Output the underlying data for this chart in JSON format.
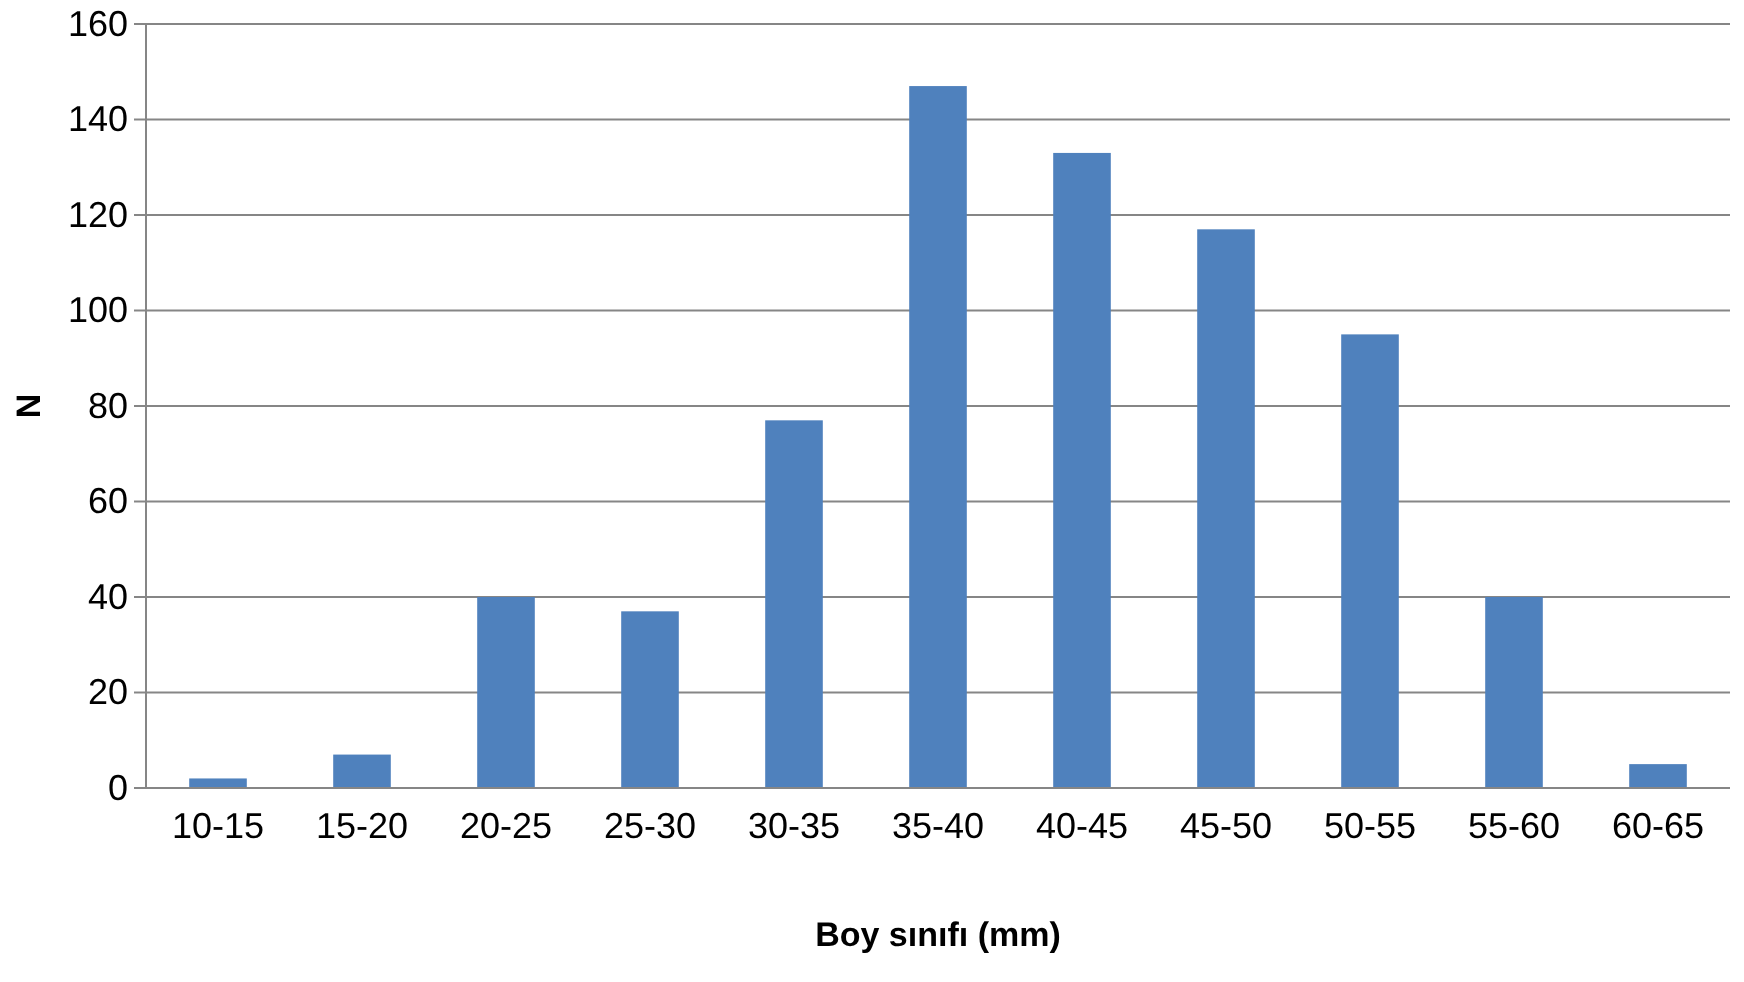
{
  "chart_data": {
    "type": "bar",
    "xlabel": "Boy sınıfı (mm)",
    "ylabel": "N",
    "categories": [
      "10-15",
      "15-20",
      "20-25",
      "25-30",
      "30-35",
      "35-40",
      "40-45",
      "45-50",
      "50-55",
      "55-60",
      "60-65"
    ],
    "values": [
      2,
      7,
      40,
      37,
      77,
      147,
      133,
      117,
      95,
      40,
      5
    ],
    "color": "#4f81bd",
    "ylim": [
      0,
      160
    ],
    "yticks": [
      0,
      20,
      40,
      60,
      80,
      100,
      120,
      140,
      160
    ],
    "grid": "y"
  }
}
